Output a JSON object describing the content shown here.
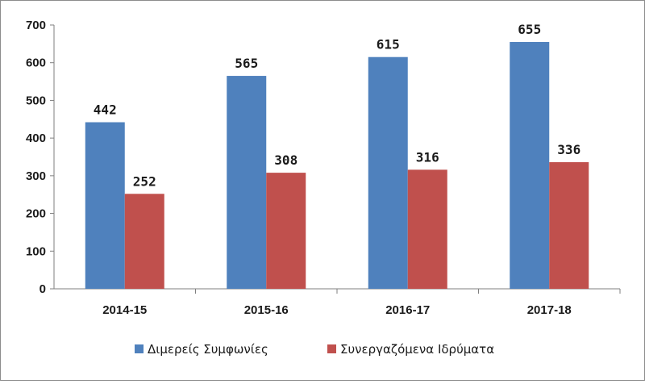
{
  "chart_data": {
    "type": "bar",
    "title": "",
    "xlabel": "",
    "ylabel": "",
    "categories": [
      "2014-15",
      "2015-16",
      "2016-17",
      "2017-18"
    ],
    "series": [
      {
        "name": "Διμερείς Συμφωνίες",
        "values": [
          442,
          565,
          615,
          655
        ],
        "color": "#4f81bd"
      },
      {
        "name": "Συνεργαζόμενα Ιδρύματα",
        "values": [
          252,
          308,
          316,
          336
        ],
        "color": "#c0504d"
      }
    ],
    "ylim": [
      0,
      700
    ],
    "yticks": [
      0,
      100,
      200,
      300,
      400,
      500,
      600,
      700
    ],
    "grid": false,
    "legend_position": "bottom"
  }
}
